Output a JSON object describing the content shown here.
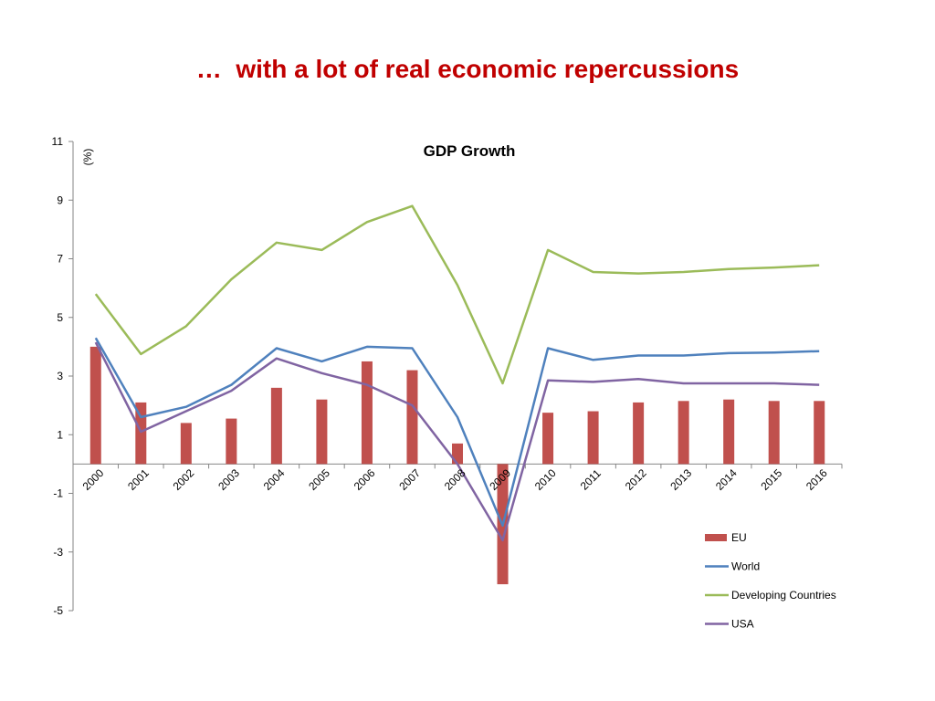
{
  "slide": {
    "title": "…  with a lot of real economic repercussions"
  },
  "chart_data": {
    "type": "bar+line",
    "title": "GDP Growth",
    "ylabel": "(%)",
    "ylim": [
      -5,
      11
    ],
    "yticks": [
      11,
      9,
      7,
      5,
      3,
      1,
      -1,
      -3,
      -5
    ],
    "categories": [
      "2000",
      "2001",
      "2002",
      "2003",
      "2004",
      "2005",
      "2006",
      "2007",
      "2008",
      "2009",
      "2010",
      "2011",
      "2012",
      "2013",
      "2014",
      "2015",
      "2016"
    ],
    "legend_position": "bottom-right",
    "series": [
      {
        "name": "EU",
        "kind": "bar",
        "color": "#c0504d",
        "values": [
          4.0,
          2.1,
          1.4,
          1.55,
          2.6,
          2.2,
          3.5,
          3.2,
          0.7,
          -4.1,
          1.75,
          1.8,
          2.1,
          2.15,
          2.2,
          2.15,
          2.15
        ]
      },
      {
        "name": "World",
        "kind": "line",
        "color": "#4f81bd",
        "values": [
          4.3,
          1.6,
          1.95,
          2.7,
          3.95,
          3.5,
          4.0,
          3.95,
          1.6,
          -2.1,
          3.95,
          3.55,
          3.7,
          3.7,
          3.78,
          3.8,
          3.85
        ]
      },
      {
        "name": "Developing Countries",
        "kind": "line",
        "color": "#9bbb59",
        "values": [
          5.8,
          3.75,
          4.7,
          6.3,
          7.55,
          7.3,
          8.25,
          8.8,
          6.1,
          2.75,
          7.3,
          6.55,
          6.5,
          6.55,
          6.65,
          6.7,
          6.78
        ]
      },
      {
        "name": "USA",
        "kind": "line",
        "color": "#8064a2",
        "values": [
          4.15,
          1.1,
          1.8,
          2.5,
          3.6,
          3.1,
          2.7,
          2.0,
          0.0,
          -2.6,
          2.85,
          2.8,
          2.9,
          2.75,
          2.75,
          2.75,
          2.7
        ]
      }
    ]
  }
}
